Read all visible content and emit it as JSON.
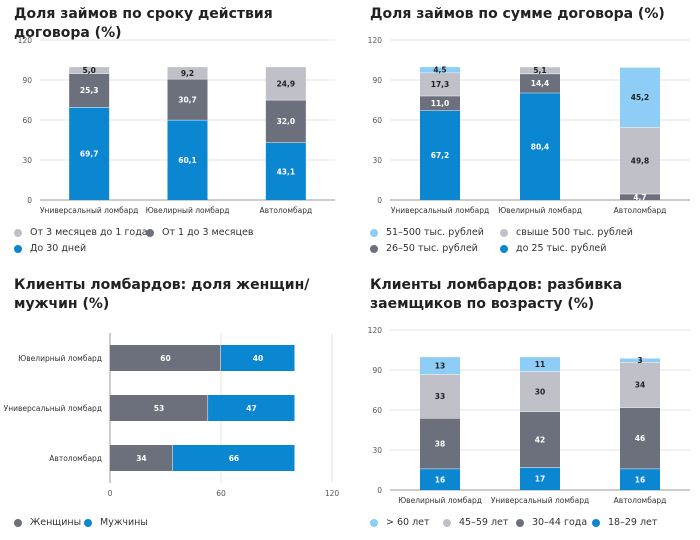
{
  "colors": {
    "light_blue": "#8ecdf6",
    "light_gray": "#bfc0c8",
    "dark_gray": "#6c707c",
    "blue": "#0b86d0",
    "axis": "#999999",
    "grid": "#e6e6e6"
  },
  "chart_data": [
    {
      "type": "bar",
      "orientation": "vertical",
      "stacked": true,
      "title": "Доля займов по сроку действия договора (%)",
      "categories": [
        "Универсальный ломбард",
        "Ювелирный ломбард",
        "Автоломбард"
      ],
      "ylim": [
        0,
        120
      ],
      "yticks": [
        "0",
        "30",
        "60",
        "90",
        "120"
      ],
      "series": [
        {
          "name": "До 30 дней",
          "color": "#0b86d0",
          "values": [
            69.7,
            60.1,
            43.1
          ],
          "labels": [
            "69,7",
            "60,1",
            "43,1"
          ]
        },
        {
          "name": "От 1 до 3 месяцев",
          "color": "#6c707c",
          "values": [
            25.3,
            30.7,
            32.0
          ],
          "labels": [
            "25,3",
            "30,7",
            "32,0"
          ]
        },
        {
          "name": "От 3 месяцев до 1 года",
          "color": "#bfc0c8",
          "values": [
            5.0,
            9.2,
            24.9
          ],
          "labels": [
            "5,0",
            "9,2",
            "24,9"
          ]
        }
      ],
      "legend_rows": [
        [
          "От 3 месяцев до 1 года",
          "От 1 до 3 месяцев"
        ],
        [
          "До 30 дней"
        ]
      ]
    },
    {
      "type": "bar",
      "orientation": "vertical",
      "stacked": true,
      "title": "Доля займов по сумме договора (%)",
      "categories": [
        "Универсальный ломбард",
        "Ювелирный ломбард",
        "Автоломбард"
      ],
      "ylim": [
        0,
        120
      ],
      "yticks": [
        "0",
        "30",
        "60",
        "90",
        "120"
      ],
      "series": [
        {
          "name": "до 25 тыс. рублей",
          "color": "#0b86d0",
          "values": [
            67.2,
            80.4,
            0
          ],
          "labels": [
            "67,2",
            "80,4",
            ""
          ]
        },
        {
          "name": "26–50 тыс. рублей",
          "color": "#6c707c",
          "values": [
            11.0,
            14.4,
            4.7
          ],
          "labels": [
            "11,0",
            "14,4",
            "4,7"
          ]
        },
        {
          "name": "свыше 500 тыс. рублей",
          "color": "#bfc0c8",
          "values": [
            17.3,
            5.1,
            49.8
          ],
          "labels": [
            "17,3",
            "5,1",
            "49,8"
          ]
        },
        {
          "name": "51–500 тыс. рублей",
          "color": "#8ecdf6",
          "values": [
            4.5,
            0,
            45.2
          ],
          "labels": [
            "4,5",
            "",
            "45,2"
          ]
        }
      ],
      "legend_rows": [
        [
          "51–500 тыс. рублей",
          "свыше 500 тыс. рублей"
        ],
        [
          "26–50 тыс. рублей",
          "до 25 тыс. рублей"
        ]
      ]
    },
    {
      "type": "bar",
      "orientation": "horizontal",
      "stacked": true,
      "title": "Клиенты ломбардов: доля женщин/мужчин (%)",
      "categories": [
        "Ювелирный ломбард",
        "Универсальный ломбард",
        "Автоломбард"
      ],
      "xlim": [
        0,
        120
      ],
      "xticks": [
        "0",
        "60",
        "120"
      ],
      "series": [
        {
          "name": "Женщины",
          "color": "#6c707c",
          "values": [
            60,
            53,
            34
          ],
          "labels": [
            "60",
            "53",
            "34"
          ]
        },
        {
          "name": "Мужчины",
          "color": "#0b86d0",
          "values": [
            40,
            47,
            66
          ],
          "labels": [
            "40",
            "47",
            "66"
          ]
        }
      ],
      "legend_rows": [
        [
          "Женщины",
          "Мужчины"
        ]
      ]
    },
    {
      "type": "bar",
      "orientation": "vertical",
      "stacked": true,
      "title": "Клиенты ломбардов: разбивка заемщиков по возрасту (%)",
      "categories": [
        "Ювелирный ломбард",
        "Универсальный ломбард",
        "Автоломбард"
      ],
      "ylim": [
        0,
        120
      ],
      "yticks": [
        "0",
        "30",
        "60",
        "90",
        "120"
      ],
      "series": [
        {
          "name": "18–29 лет",
          "color": "#0b86d0",
          "values": [
            16,
            17,
            16
          ],
          "labels": [
            "16",
            "17",
            "16"
          ]
        },
        {
          "name": "30–44 года",
          "color": "#6c707c",
          "values": [
            38,
            42,
            46
          ],
          "labels": [
            "38",
            "42",
            "46"
          ]
        },
        {
          "name": "45–59 лет",
          "color": "#bfc0c8",
          "values": [
            33,
            30,
            34
          ],
          "labels": [
            "33",
            "30",
            "34"
          ]
        },
        {
          "name": "> 60 лет",
          "color": "#8ecdf6",
          "values": [
            13,
            11,
            3
          ],
          "labels": [
            "13",
            "11",
            "3"
          ]
        }
      ],
      "legend_rows": [
        [
          "> 60 лет",
          "45–59 лет",
          "30–44 года",
          "18–29 лет"
        ]
      ]
    }
  ]
}
